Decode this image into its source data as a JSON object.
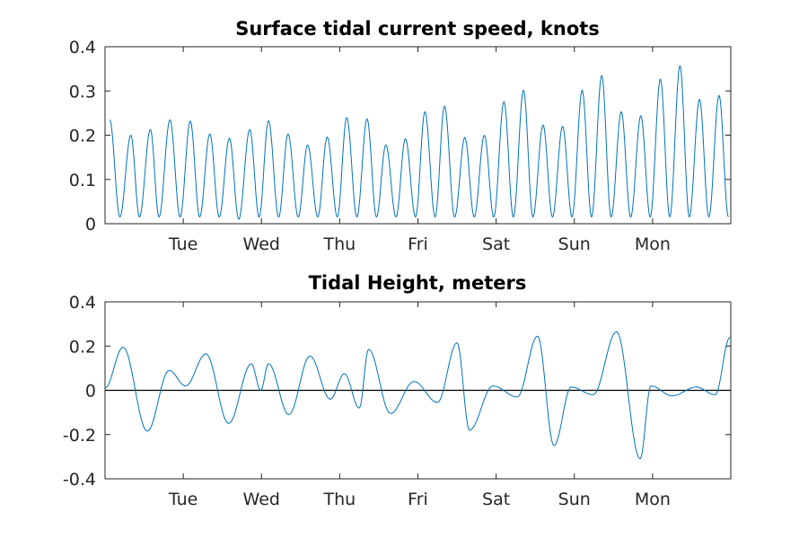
{
  "colors": {
    "series": "#0072bd",
    "axes": "#262626",
    "zero_line": "#000000"
  },
  "chart_data": [
    {
      "type": "line",
      "title": "Surface tidal current speed, knots",
      "xlabel": "",
      "ylabel": "",
      "xlim": [
        0,
        8
      ],
      "ylim": [
        0,
        0.4
      ],
      "yticks": [
        0,
        0.1,
        0.2,
        0.3,
        0.4
      ],
      "ytick_labels": [
        "0",
        "0.1",
        "0.2",
        "0.3",
        "0.4"
      ],
      "xticks": [
        1,
        2,
        3,
        4,
        5,
        6,
        7
      ],
      "xtick_labels": [
        "Tue",
        "Wed",
        "Thu",
        "Fri",
        "Sat",
        "Sun",
        "Mon"
      ],
      "grid": false,
      "series": [
        {
          "x": [
            0.06,
            0.19,
            0.33,
            0.44,
            0.58,
            0.69,
            0.83,
            0.96,
            1.09,
            1.21,
            1.34,
            1.46,
            1.59,
            1.71,
            1.85,
            1.97,
            2.09,
            2.22,
            2.34,
            2.47,
            2.59,
            2.72,
            2.84,
            2.97,
            3.09,
            3.22,
            3.35,
            3.47,
            3.59,
            3.72,
            3.84,
            3.97,
            4.09,
            4.22,
            4.34,
            4.47,
            4.6,
            4.72,
            4.85,
            4.97,
            5.1,
            5.22,
            5.35,
            5.47,
            5.6,
            5.72,
            5.85,
            5.97,
            6.1,
            6.22,
            6.35,
            6.47,
            6.6,
            6.72,
            6.85,
            6.97,
            7.1,
            7.22,
            7.35,
            7.47,
            7.6,
            7.72,
            7.85,
            7.97
          ],
          "y": [
            0.235,
            0.015,
            0.2,
            0.015,
            0.213,
            0.015,
            0.235,
            0.015,
            0.232,
            0.015,
            0.203,
            0.015,
            0.193,
            0.01,
            0.213,
            0.015,
            0.233,
            0.015,
            0.203,
            0.015,
            0.178,
            0.015,
            0.196,
            0.015,
            0.24,
            0.015,
            0.237,
            0.015,
            0.178,
            0.015,
            0.192,
            0.015,
            0.253,
            0.015,
            0.266,
            0.015,
            0.195,
            0.015,
            0.2,
            0.015,
            0.276,
            0.015,
            0.302,
            0.015,
            0.223,
            0.015,
            0.22,
            0.015,
            0.302,
            0.015,
            0.335,
            0.015,
            0.253,
            0.015,
            0.244,
            0.015,
            0.327,
            0.015,
            0.357,
            0.015,
            0.281,
            0.015,
            0.29,
            0.015
          ]
        }
      ]
    },
    {
      "type": "line",
      "title": "Tidal Height, meters",
      "xlabel": "",
      "ylabel": "",
      "xlim": [
        0,
        8
      ],
      "ylim": [
        -0.4,
        0.4
      ],
      "yticks": [
        -0.4,
        -0.2,
        0,
        0.2,
        0.4
      ],
      "ytick_labels": [
        "-0.4",
        "-0.2",
        "0",
        "0.2",
        "0.4"
      ],
      "xticks": [
        1,
        2,
        3,
        4,
        5,
        6,
        7
      ],
      "xtick_labels": [
        "Tue",
        "Wed",
        "Thu",
        "Fri",
        "Sat",
        "Sun",
        "Mon"
      ],
      "grid": false,
      "reference_line_y": 0,
      "series": [
        {
          "x": [
            0,
            0.23,
            0.54,
            0.82,
            1.03,
            1.29,
            1.58,
            1.87,
            1.99,
            2.09,
            2.35,
            2.62,
            2.88,
            3.06,
            3.25,
            3.37,
            3.65,
            3.95,
            4.25,
            4.5,
            4.66,
            4.96,
            5.27,
            5.53,
            5.74,
            5.96,
            6.24,
            6.54,
            6.84,
            6.98,
            7.25,
            7.56,
            7.8,
            7.99
          ],
          "y": [
            0.01,
            0.195,
            -0.185,
            0.09,
            0.02,
            0.165,
            -0.15,
            0.12,
            0.0,
            0.12,
            -0.11,
            0.155,
            -0.04,
            0.075,
            -0.08,
            0.185,
            -0.105,
            0.04,
            -0.055,
            0.215,
            -0.18,
            0.02,
            -0.03,
            0.245,
            -0.25,
            0.015,
            -0.02,
            0.265,
            -0.31,
            0.02,
            -0.025,
            0.015,
            -0.02,
            0.24
          ]
        }
      ]
    }
  ]
}
